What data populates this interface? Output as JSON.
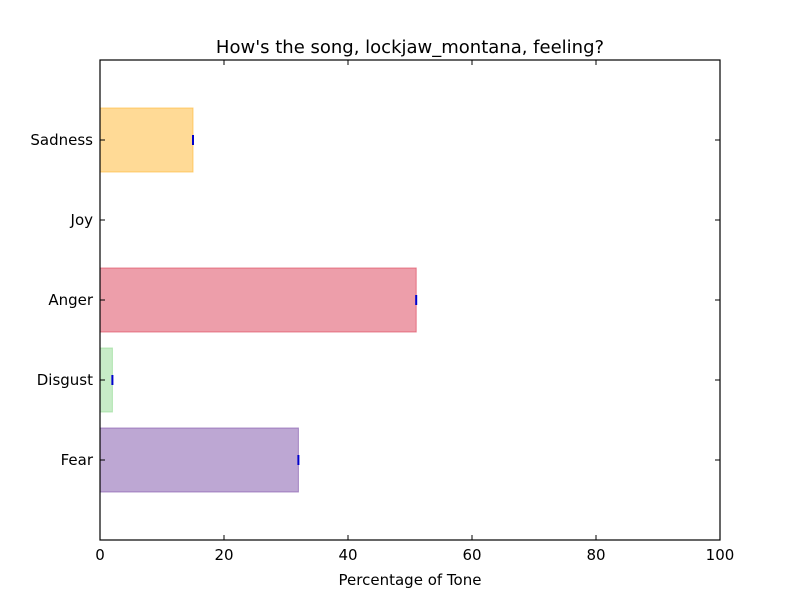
{
  "chart_data": {
    "type": "bar",
    "orientation": "horizontal",
    "title": "How's the song, lockjaw_montana, feeling?",
    "xlabel": "Percentage of Tone",
    "ylabel": "",
    "xlim": [
      0,
      100
    ],
    "xticks": [
      "0",
      "20",
      "40",
      "60",
      "80",
      "100"
    ],
    "categories": [
      "Fear",
      "Disgust",
      "Anger",
      "Joy",
      "Sadness"
    ],
    "values": [
      32,
      2,
      51,
      0,
      15
    ],
    "colors": [
      "#7b4fa8",
      "#8fd98f",
      "#dc3e55",
      "#ffd700",
      "#ffb62e"
    ],
    "grid": false,
    "legend": "none"
  }
}
